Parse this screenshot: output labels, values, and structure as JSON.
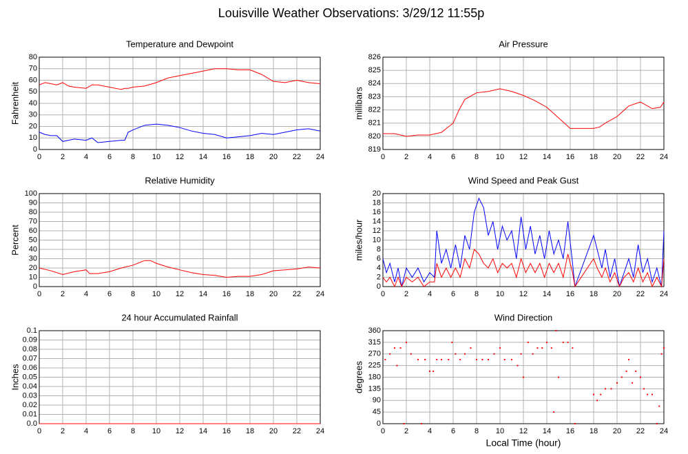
{
  "title": "Louisville Weather Observations: 3/29/12 11:55p",
  "chart_data": [
    {
      "type": "line",
      "title": "Temperature and Dewpoint",
      "ylabel": "Fahrenheit",
      "grid": true,
      "xlim": [
        0,
        24
      ],
      "xticks": [
        0,
        2,
        4,
        6,
        8,
        10,
        12,
        14,
        16,
        18,
        20,
        22,
        24
      ],
      "ylim": [
        0,
        80
      ],
      "yticks": [
        0,
        10,
        20,
        30,
        40,
        50,
        60,
        70,
        80
      ],
      "x": [
        0,
        0.5,
        1,
        1.5,
        2,
        2.5,
        3,
        4,
        4.5,
        5,
        6,
        7,
        7.3,
        7.6,
        8,
        9,
        10,
        11,
        12,
        13,
        14,
        15,
        16,
        17,
        18,
        19,
        20,
        21,
        22,
        23,
        24
      ],
      "series": [
        {
          "color": "#ff0000",
          "values": [
            56,
            58,
            57,
            56,
            58,
            55,
            54,
            53,
            56,
            56,
            54,
            52,
            53,
            53,
            54,
            55,
            58,
            62,
            64,
            66,
            68,
            70,
            70,
            69,
            69,
            65,
            59,
            58,
            60,
            58,
            57
          ]
        },
        {
          "color": "#0000ff",
          "values": [
            15,
            13,
            12,
            12,
            7,
            8,
            9,
            8,
            10,
            6,
            7,
            8,
            8,
            15,
            17,
            21,
            22,
            21,
            19,
            16,
            14,
            13,
            10,
            11,
            12,
            14,
            13,
            15,
            17,
            18,
            16
          ]
        }
      ]
    },
    {
      "type": "line",
      "title": "Air Pressure",
      "ylabel": "millibars",
      "grid": true,
      "xlim": [
        0,
        24
      ],
      "xticks": [
        0,
        2,
        4,
        6,
        8,
        10,
        12,
        14,
        16,
        18,
        20,
        22,
        24
      ],
      "ylim": [
        819,
        826
      ],
      "yticks": [
        819,
        820,
        821,
        822,
        823,
        824,
        825,
        826
      ],
      "x": [
        0,
        1,
        2,
        3,
        4,
        5,
        6,
        6.5,
        7,
        8,
        9,
        10,
        11,
        12,
        13,
        14,
        15,
        16,
        17,
        18,
        18.5,
        19,
        20,
        21,
        22,
        23,
        23.7,
        24
      ],
      "series": [
        {
          "color": "#ff0000",
          "values": [
            820.2,
            820.2,
            820.0,
            820.1,
            820.1,
            820.3,
            821.0,
            822.0,
            822.8,
            823.3,
            823.4,
            823.6,
            823.4,
            823.1,
            822.7,
            822.2,
            821.4,
            820.6,
            820.6,
            820.6,
            820.7,
            821.0,
            821.5,
            822.3,
            822.6,
            822.1,
            822.2,
            822.6
          ]
        }
      ]
    },
    {
      "type": "line",
      "title": "Relative Humidity",
      "ylabel": "Percent",
      "grid": true,
      "xlim": [
        0,
        24
      ],
      "xticks": [
        0,
        2,
        4,
        6,
        8,
        10,
        12,
        14,
        16,
        18,
        20,
        22,
        24
      ],
      "ylim": [
        0,
        100
      ],
      "yticks": [
        0,
        10,
        20,
        30,
        40,
        50,
        60,
        70,
        80,
        90,
        100
      ],
      "x": [
        0,
        1,
        2,
        3,
        4,
        4.3,
        5,
        6,
        7,
        8,
        9,
        9.5,
        10,
        11,
        12,
        13,
        14,
        15,
        16,
        17,
        18,
        19,
        20,
        21,
        22,
        23,
        24
      ],
      "series": [
        {
          "color": "#ff0000",
          "values": [
            20,
            17,
            13,
            16,
            18,
            14,
            14,
            16,
            20,
            23,
            28,
            28,
            25,
            21,
            18,
            15,
            13,
            12,
            10,
            11,
            11,
            13,
            17,
            18,
            19,
            21,
            20
          ]
        }
      ]
    },
    {
      "type": "line",
      "title": "Wind Speed and Peak Gust",
      "ylabel": "miles/hour",
      "grid": true,
      "xlim": [
        0,
        24
      ],
      "xticks": [
        0,
        2,
        4,
        6,
        8,
        10,
        12,
        14,
        16,
        18,
        20,
        22,
        24
      ],
      "ylim": [
        0,
        20
      ],
      "yticks": [
        0,
        2,
        4,
        6,
        8,
        10,
        12,
        14,
        16,
        18,
        20
      ],
      "x": [
        0,
        0.3,
        0.6,
        1,
        1.3,
        1.6,
        2,
        2.5,
        3,
        3.5,
        4,
        4.4,
        4.6,
        5,
        5.4,
        5.8,
        6.2,
        6.6,
        7,
        7.4,
        7.8,
        8.2,
        8.6,
        9,
        9.4,
        9.8,
        10.2,
        10.6,
        11,
        11.4,
        11.8,
        12.2,
        12.6,
        13,
        13.4,
        13.8,
        14.2,
        14.6,
        15,
        15.4,
        15.8,
        16.2,
        16.4,
        18,
        18.3,
        18.7,
        19,
        19.4,
        19.8,
        20.2,
        20.6,
        21,
        21.4,
        21.8,
        22.2,
        22.6,
        23,
        23.4,
        23.8,
        24
      ],
      "series": [
        {
          "color": "#0000ff",
          "values": [
            6,
            3,
            5,
            1,
            4,
            0,
            4,
            2,
            4,
            1,
            3,
            2,
            12,
            5,
            8,
            4,
            9,
            4,
            11,
            8,
            16,
            19,
            17,
            11,
            14,
            8,
            13,
            10,
            12,
            6,
            15,
            8,
            13,
            7,
            11,
            6,
            12,
            7,
            10,
            6,
            14,
            5,
            0,
            11,
            8,
            4,
            8,
            2,
            6,
            0,
            3,
            6,
            2,
            9,
            3,
            6,
            1,
            4,
            0,
            12
          ]
        },
        {
          "color": "#ff0000",
          "values": [
            2,
            1,
            2,
            0,
            2,
            0,
            2,
            1,
            2,
            0,
            1,
            1,
            5,
            2,
            4,
            2,
            4,
            2,
            6,
            4,
            8,
            7,
            5,
            4,
            6,
            3,
            5,
            4,
            5,
            2,
            6,
            3,
            5,
            3,
            5,
            2,
            5,
            3,
            5,
            2,
            7,
            3,
            0,
            6,
            4,
            2,
            4,
            1,
            3,
            0,
            2,
            3,
            1,
            4,
            1,
            3,
            0,
            2,
            0,
            6
          ]
        }
      ]
    },
    {
      "type": "line",
      "title": "24 hour Accumulated Rainfall",
      "ylabel": "Inches",
      "grid": true,
      "xlim": [
        0,
        24
      ],
      "xticks": [
        0,
        2,
        4,
        6,
        8,
        10,
        12,
        14,
        16,
        18,
        20,
        22,
        24
      ],
      "ylim": [
        0,
        0.1
      ],
      "yticks": [
        {
          "value": 0,
          "label": "0.0"
        },
        0.01,
        0.02,
        0.03,
        0.04,
        0.05,
        0.06,
        0.07,
        0.08,
        0.09,
        {
          "value": 0.1,
          "label": "0.1"
        }
      ],
      "x": [
        0,
        24
      ],
      "series": [
        {
          "color": "#ff0000",
          "values": [
            0,
            0
          ]
        }
      ]
    },
    {
      "type": "scatter",
      "title": "Wind Direction",
      "ylabel": "degrees",
      "xlabel": "Local Time (hour)",
      "grid": true,
      "color": "#ff0000",
      "xlim": [
        0,
        24
      ],
      "xticks": [
        0,
        2,
        4,
        6,
        8,
        10,
        12,
        14,
        16,
        18,
        20,
        22,
        24
      ],
      "ylim": [
        0,
        360
      ],
      "yticks": [
        0,
        45,
        90,
        135,
        180,
        225,
        270,
        315,
        360
      ],
      "x": [
        0.2,
        0.6,
        1,
        1.2,
        1.5,
        1.8,
        2,
        2.4,
        3,
        3.3,
        3.6,
        4,
        4.3,
        4.6,
        5,
        5.6,
        5.9,
        6.2,
        6.6,
        7,
        7.5,
        8,
        8.5,
        9,
        9.5,
        10,
        10.4,
        11,
        11.5,
        11.8,
        12,
        12.4,
        12.8,
        13.2,
        13.6,
        14,
        14.4,
        14.6,
        14.8,
        15,
        15.4,
        15.8,
        16.2,
        16.4,
        18,
        18.3,
        18.6,
        19,
        19.5,
        20,
        20.4,
        20.8,
        21,
        21.3,
        21.6,
        22,
        22.3,
        22.6,
        23,
        23.4,
        23.6,
        23.8,
        24
      ],
      "values": [
        248,
        270,
        293,
        225,
        293,
        0,
        315,
        270,
        248,
        0,
        248,
        203,
        203,
        248,
        248,
        248,
        315,
        270,
        248,
        270,
        293,
        248,
        248,
        248,
        270,
        293,
        248,
        248,
        225,
        270,
        180,
        315,
        270,
        293,
        293,
        315,
        293,
        45,
        360,
        180,
        315,
        315,
        293,
        0,
        113,
        90,
        113,
        135,
        135,
        158,
        180,
        203,
        248,
        158,
        203,
        180,
        135,
        113,
        113,
        0,
        68,
        270,
        293
      ]
    }
  ]
}
